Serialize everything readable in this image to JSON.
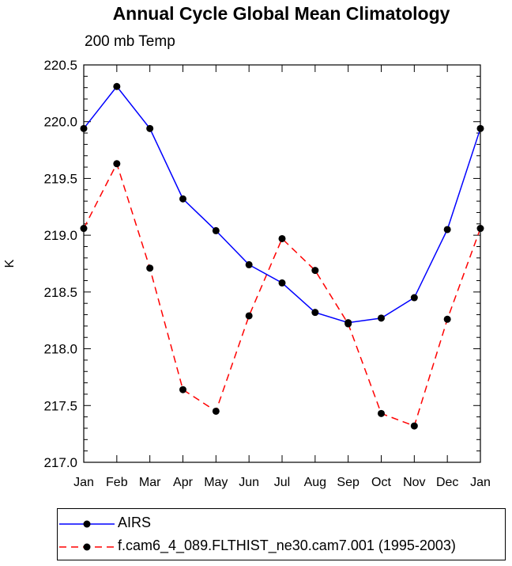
{
  "chart_data": {
    "type": "line",
    "title": "Annual Cycle Global Mean Climatology",
    "subtitle": "200 mb Temp",
    "ylabel": "K",
    "xlabel": "",
    "categories": [
      "Jan",
      "Feb",
      "Mar",
      "Apr",
      "May",
      "Jun",
      "Jul",
      "Aug",
      "Sep",
      "Oct",
      "Nov",
      "Dec",
      "Jan"
    ],
    "ylim": [
      217.0,
      220.5
    ],
    "yticks": [
      "217.0",
      "217.5",
      "218.0",
      "218.5",
      "219.0",
      "219.5",
      "220.0",
      "220.5"
    ],
    "grid": false,
    "legend_position": "bottom",
    "series": [
      {
        "name": "AIRS",
        "color": "#0000ff",
        "dash": "solid",
        "values": [
          219.94,
          220.31,
          219.94,
          219.32,
          219.04,
          218.74,
          218.58,
          218.32,
          218.23,
          218.27,
          218.45,
          219.05,
          219.94
        ]
      },
      {
        "name": "f.cam6_4_089.FLTHIST_ne30.cam7.001 (1995-2003)",
        "color": "#ff0000",
        "dash": "dashed",
        "values": [
          219.06,
          219.63,
          218.71,
          217.64,
          217.45,
          218.29,
          218.97,
          218.69,
          218.22,
          217.43,
          217.32,
          218.26,
          219.06
        ]
      }
    ]
  }
}
